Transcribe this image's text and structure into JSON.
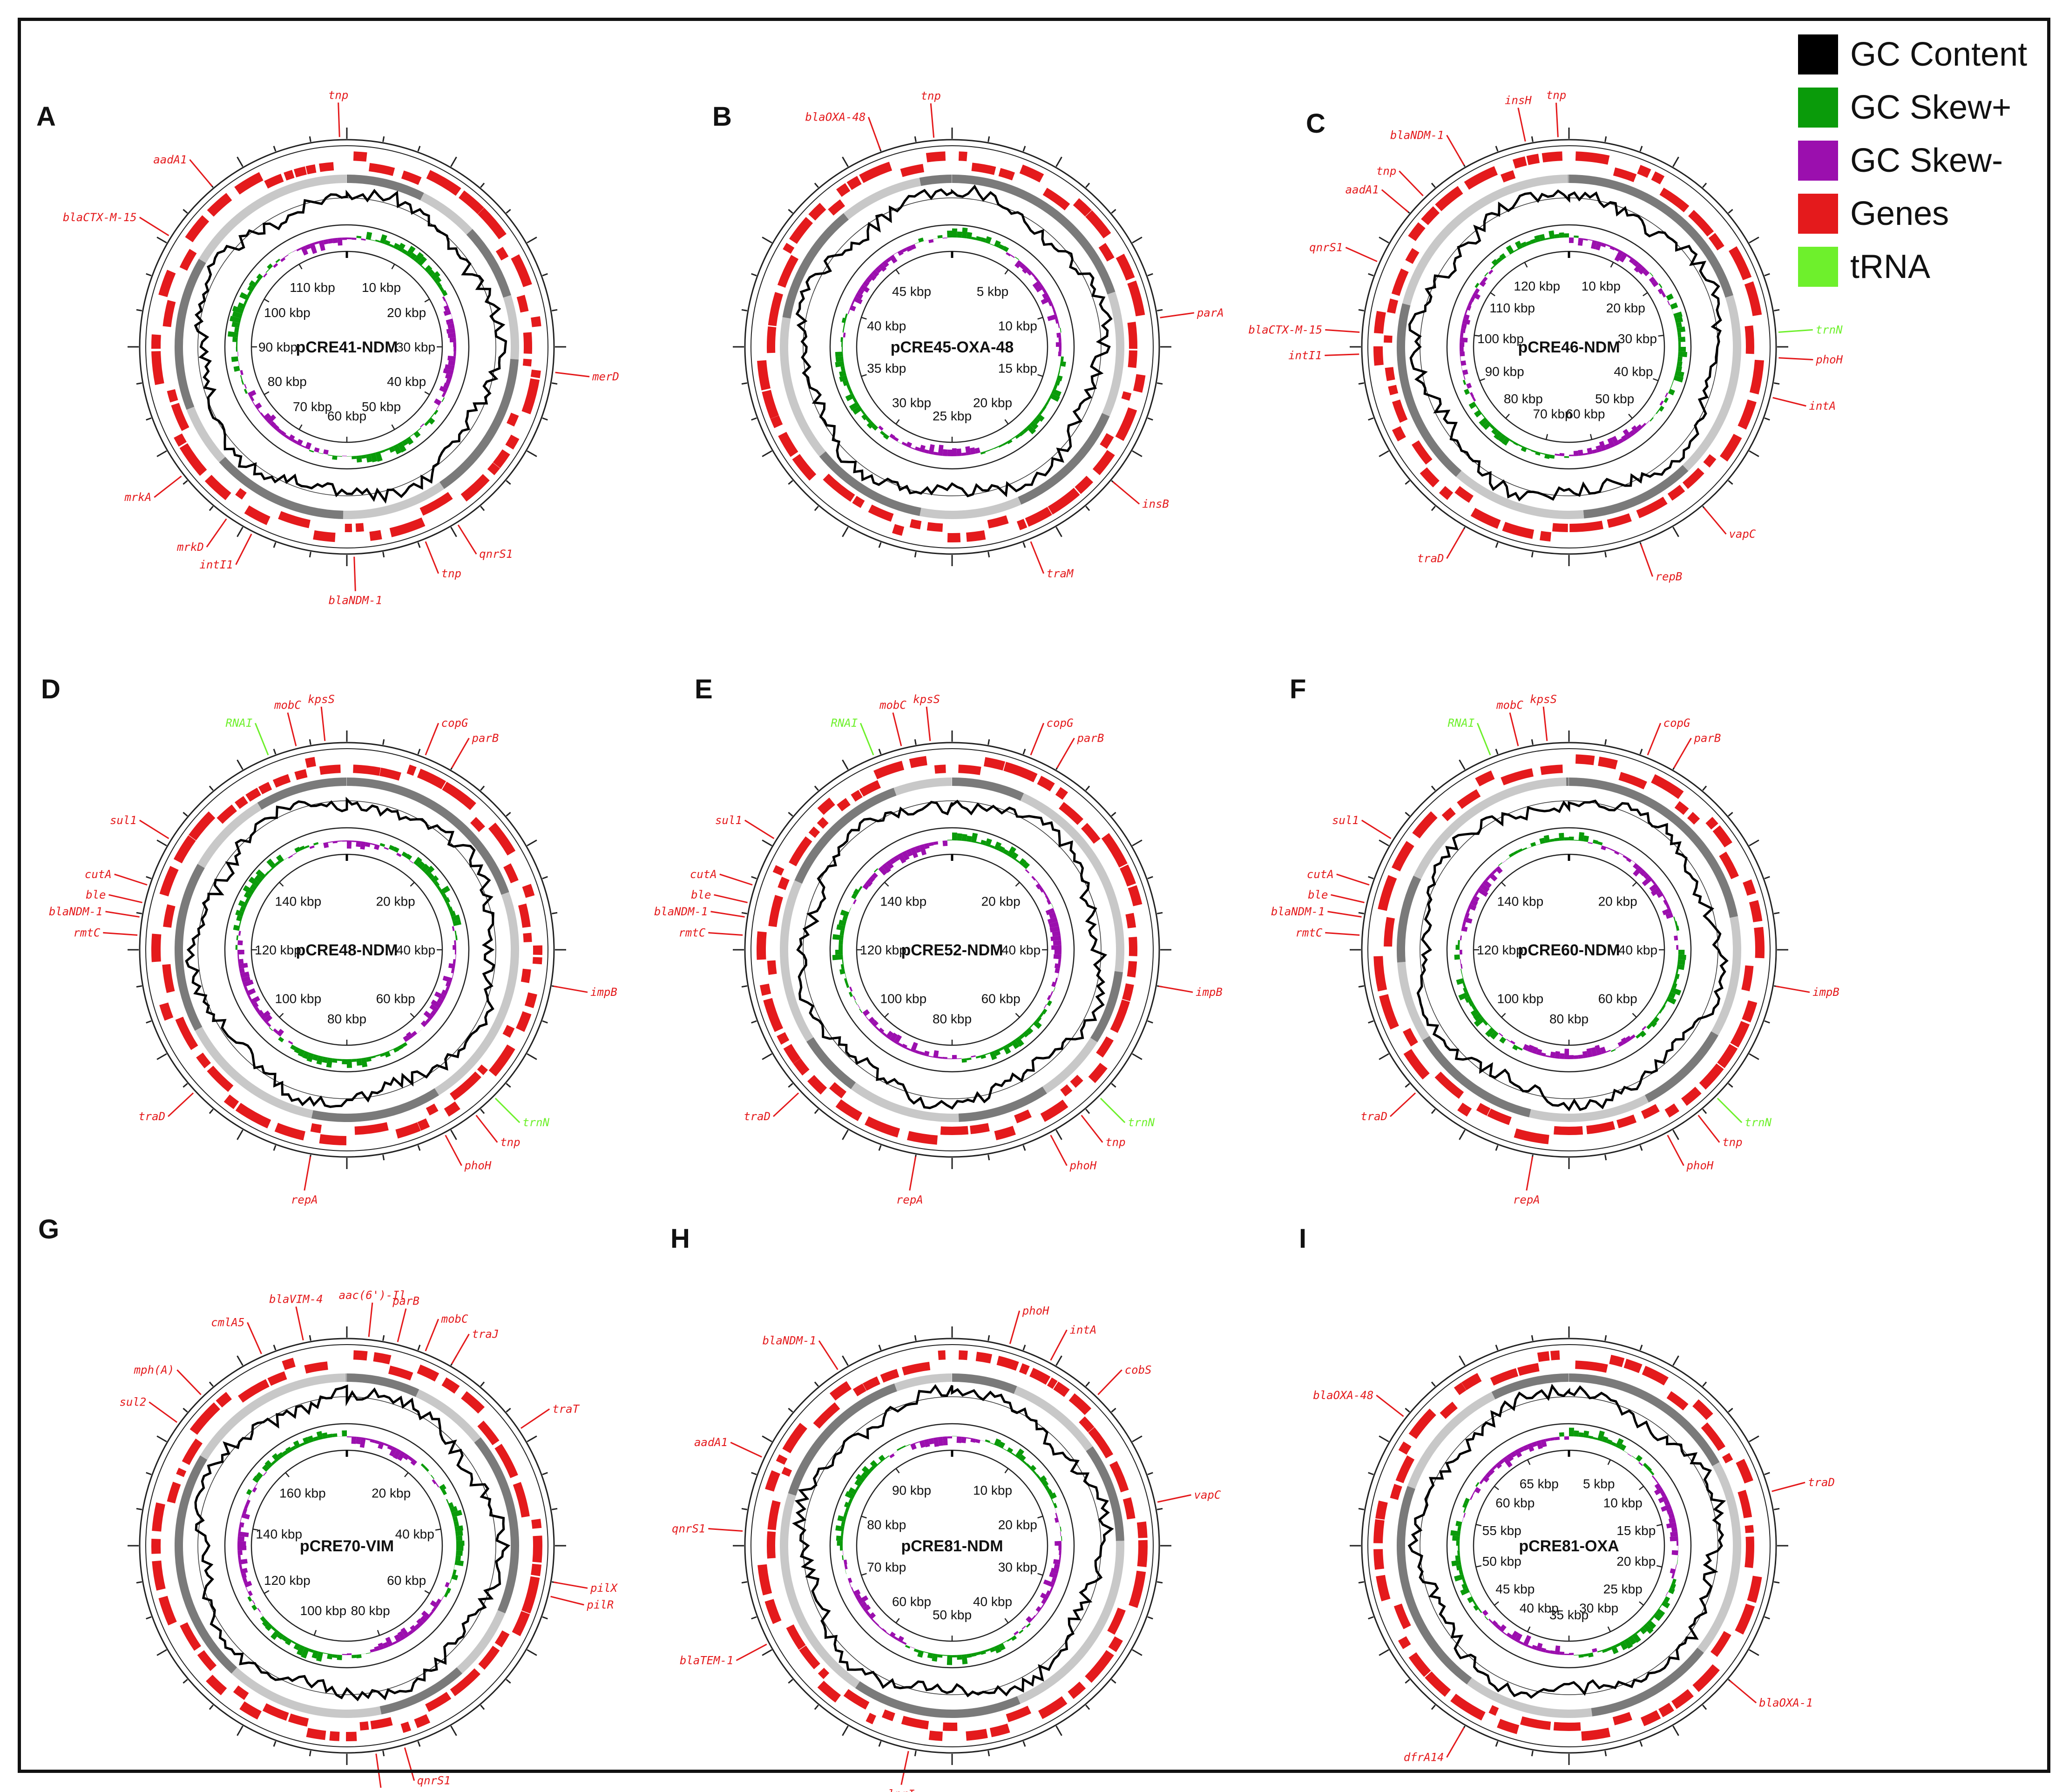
{
  "colors": {
    "gc_content": "#000000",
    "gc_skew_plus": "#0a9b0a",
    "gc_skew_minus": "#9b0fae",
    "genes": "#e41a1c",
    "trna": "#6ef02c",
    "backbone_dark": "#7a7a7a",
    "backbone_light": "#c8c8c8",
    "text": "#111111"
  },
  "legend": [
    {
      "label": "GC Content",
      "color": "#000000"
    },
    {
      "label": "GC Skew+",
      "color": "#0a9b0a"
    },
    {
      "label": "GC Skew-",
      "color": "#9b0fae"
    },
    {
      "label": "Genes",
      "color": "#e41a1c"
    },
    {
      "label": "tRNA",
      "color": "#6ef02c"
    }
  ],
  "panels": [
    {
      "letter": "A",
      "name": "pCRE41-NDM",
      "ticks": [
        "10 kbp",
        "20 kbp",
        "30 kbp",
        "40 kbp",
        "50 kbp",
        "60 kbp",
        "70 kbp",
        "80 kbp",
        "90 kbp",
        "100 kbp",
        "110 kbp"
      ],
      "genes": [
        {
          "name": "tnp",
          "angle": -2,
          "kind": "gene"
        },
        {
          "name": "aadA1",
          "angle": -40,
          "kind": "gene"
        },
        {
          "name": "blaCTX-M-15",
          "angle": -58,
          "kind": "gene"
        },
        {
          "name": "merD",
          "angle": 97,
          "kind": "gene"
        },
        {
          "name": "mrkA",
          "angle": -128,
          "kind": "gene"
        },
        {
          "name": "mrkD",
          "angle": -145,
          "kind": "gene"
        },
        {
          "name": "intI1",
          "angle": -153,
          "kind": "gene"
        },
        {
          "name": "blaNDM-1",
          "angle": 178,
          "kind": "gene"
        },
        {
          "name": "tnp",
          "angle": 158,
          "kind": "gene"
        },
        {
          "name": "qnrS1",
          "angle": 148,
          "kind": "gene"
        }
      ]
    },
    {
      "letter": "B",
      "name": "pCRE45-OXA-48",
      "ticks": [
        "5 kbp",
        "10 kbp",
        "15 kbp",
        "20 kbp",
        "25 kbp",
        "30 kbp",
        "35 kbp",
        "40 kbp",
        "45 kbp"
      ],
      "genes": [
        {
          "name": "blaOXA-48",
          "angle": -20,
          "kind": "gene"
        },
        {
          "name": "tnp",
          "angle": -5,
          "kind": "gene"
        },
        {
          "name": "parA",
          "angle": 82,
          "kind": "gene"
        },
        {
          "name": "insB",
          "angle": 130,
          "kind": "gene"
        },
        {
          "name": "traM",
          "angle": 158,
          "kind": "gene"
        }
      ]
    },
    {
      "letter": "C",
      "name": "pCRE46-NDM",
      "ticks": [
        "10 kbp",
        "20 kbp",
        "30 kbp",
        "40 kbp",
        "50 kbp",
        "60 kbp",
        "70 kbp",
        "80 kbp",
        "90 kbp",
        "100 kbp",
        "110 kbp",
        "120 kbp"
      ],
      "genes": [
        {
          "name": "blaNDM-1",
          "angle": -30,
          "kind": "gene"
        },
        {
          "name": "insH",
          "angle": -12,
          "kind": "gene"
        },
        {
          "name": "tnp",
          "angle": -3,
          "kind": "gene"
        },
        {
          "name": "tnp",
          "angle": -44,
          "kind": "gene"
        },
        {
          "name": "aadA1",
          "angle": -50,
          "kind": "gene"
        },
        {
          "name": "qnrS1",
          "angle": -66,
          "kind": "gene"
        },
        {
          "name": "blaCTX-M-15",
          "angle": -86,
          "kind": "gene"
        },
        {
          "name": "intI1",
          "angle": -92,
          "kind": "gene"
        },
        {
          "name": "trnN",
          "angle": 86,
          "kind": "trna"
        },
        {
          "name": "phoH",
          "angle": 93,
          "kind": "gene"
        },
        {
          "name": "intA",
          "angle": 104,
          "kind": "gene"
        },
        {
          "name": "vapC",
          "angle": 140,
          "kind": "gene"
        },
        {
          "name": "repB",
          "angle": 160,
          "kind": "gene"
        },
        {
          "name": "traD",
          "angle": -150,
          "kind": "gene"
        }
      ]
    },
    {
      "letter": "D",
      "name": "pCRE48-NDM",
      "ticks": [
        "20 kbp",
        "40 kbp",
        "60 kbp",
        "80 kbp",
        "100 kbp",
        "120 kbp",
        "140 kbp"
      ],
      "genes": [
        {
          "name": "RNAI",
          "angle": -22,
          "kind": "trna"
        },
        {
          "name": "mobC",
          "angle": -14,
          "kind": "gene"
        },
        {
          "name": "kpsS",
          "angle": -6,
          "kind": "gene"
        },
        {
          "name": "copG",
          "angle": 22,
          "kind": "gene"
        },
        {
          "name": "parB",
          "angle": 30,
          "kind": "gene"
        },
        {
          "name": "sul1",
          "angle": -58,
          "kind": "gene"
        },
        {
          "name": "cutA",
          "angle": -72,
          "kind": "gene"
        },
        {
          "name": "ble",
          "angle": -77,
          "kind": "gene"
        },
        {
          "name": "blaNDM-1",
          "angle": -81,
          "kind": "gene"
        },
        {
          "name": "rmtC",
          "angle": -86,
          "kind": "gene"
        },
        {
          "name": "impB",
          "angle": 100,
          "kind": "gene"
        },
        {
          "name": "trnN",
          "angle": 135,
          "kind": "trna"
        },
        {
          "name": "tnp",
          "angle": 142,
          "kind": "gene"
        },
        {
          "name": "phoH",
          "angle": 152,
          "kind": "gene"
        },
        {
          "name": "repA",
          "angle": -170,
          "kind": "gene"
        },
        {
          "name": "traD",
          "angle": -133,
          "kind": "gene"
        }
      ]
    },
    {
      "letter": "E",
      "name": "pCRE52-NDM",
      "ticks": [
        "20 kbp",
        "40 kbp",
        "60 kbp",
        "80 kbp",
        "100 kbp",
        "120 kbp",
        "140 kbp"
      ],
      "genes": [
        {
          "name": "RNAI",
          "angle": -22,
          "kind": "trna"
        },
        {
          "name": "mobC",
          "angle": -14,
          "kind": "gene"
        },
        {
          "name": "kpsS",
          "angle": -6,
          "kind": "gene"
        },
        {
          "name": "copG",
          "angle": 22,
          "kind": "gene"
        },
        {
          "name": "parB",
          "angle": 30,
          "kind": "gene"
        },
        {
          "name": "sul1",
          "angle": -58,
          "kind": "gene"
        },
        {
          "name": "cutA",
          "angle": -72,
          "kind": "gene"
        },
        {
          "name": "ble",
          "angle": -77,
          "kind": "gene"
        },
        {
          "name": "blaNDM-1",
          "angle": -81,
          "kind": "gene"
        },
        {
          "name": "rmtC",
          "angle": -86,
          "kind": "gene"
        },
        {
          "name": "impB",
          "angle": 100,
          "kind": "gene"
        },
        {
          "name": "trnN",
          "angle": 135,
          "kind": "trna"
        },
        {
          "name": "tnp",
          "angle": 142,
          "kind": "gene"
        },
        {
          "name": "phoH",
          "angle": 152,
          "kind": "gene"
        },
        {
          "name": "repA",
          "angle": -170,
          "kind": "gene"
        },
        {
          "name": "traD",
          "angle": -133,
          "kind": "gene"
        }
      ]
    },
    {
      "letter": "F",
      "name": "pCRE60-NDM",
      "ticks": [
        "20 kbp",
        "40 kbp",
        "60 kbp",
        "80 kbp",
        "100 kbp",
        "120 kbp",
        "140 kbp"
      ],
      "genes": [
        {
          "name": "RNAI",
          "angle": -22,
          "kind": "trna"
        },
        {
          "name": "mobC",
          "angle": -14,
          "kind": "gene"
        },
        {
          "name": "kpsS",
          "angle": -6,
          "kind": "gene"
        },
        {
          "name": "copG",
          "angle": 22,
          "kind": "gene"
        },
        {
          "name": "parB",
          "angle": 30,
          "kind": "gene"
        },
        {
          "name": "sul1",
          "angle": -58,
          "kind": "gene"
        },
        {
          "name": "cutA",
          "angle": -72,
          "kind": "gene"
        },
        {
          "name": "ble",
          "angle": -77,
          "kind": "gene"
        },
        {
          "name": "blaNDM-1",
          "angle": -81,
          "kind": "gene"
        },
        {
          "name": "rmtC",
          "angle": -86,
          "kind": "gene"
        },
        {
          "name": "impB",
          "angle": 100,
          "kind": "gene"
        },
        {
          "name": "trnN",
          "angle": 135,
          "kind": "trna"
        },
        {
          "name": "tnp",
          "angle": 142,
          "kind": "gene"
        },
        {
          "name": "phoH",
          "angle": 152,
          "kind": "gene"
        },
        {
          "name": "repA",
          "angle": -170,
          "kind": "gene"
        },
        {
          "name": "traD",
          "angle": -133,
          "kind": "gene"
        }
      ]
    },
    {
      "letter": "G",
      "name": "pCRE70-VIM",
      "ticks": [
        "20 kbp",
        "40 kbp",
        "60 kbp",
        "80 kbp",
        "100 kbp",
        "120 kbp",
        "140 kbp",
        "160 kbp"
      ],
      "genes": [
        {
          "name": "mph(A)",
          "angle": -44,
          "kind": "gene"
        },
        {
          "name": "sul2",
          "angle": -54,
          "kind": "gene"
        },
        {
          "name": "cmlA5",
          "angle": -24,
          "kind": "gene"
        },
        {
          "name": "blaVIM-4",
          "angle": -12,
          "kind": "gene"
        },
        {
          "name": "aac(6')-Il",
          "angle": 6,
          "kind": "gene"
        },
        {
          "name": "parB",
          "angle": 14,
          "kind": "gene"
        },
        {
          "name": "mobC",
          "angle": 22,
          "kind": "gene"
        },
        {
          "name": "traJ",
          "angle": 30,
          "kind": "gene"
        },
        {
          "name": "traT",
          "angle": 56,
          "kind": "gene"
        },
        {
          "name": "pilX",
          "angle": 100,
          "kind": "gene"
        },
        {
          "name": "pilR",
          "angle": 104,
          "kind": "gene"
        },
        {
          "name": "tnp",
          "angle": 172,
          "kind": "gene"
        },
        {
          "name": "qnrS1",
          "angle": 164,
          "kind": "gene"
        }
      ]
    },
    {
      "letter": "H",
      "name": "pCRE81-NDM",
      "ticks": [
        "10 kbp",
        "20 kbp",
        "30 kbp",
        "40 kbp",
        "50 kbp",
        "60 kbp",
        "70 kbp",
        "80 kbp",
        "90 kbp"
      ],
      "genes": [
        {
          "name": "blaNDM-1",
          "angle": -33,
          "kind": "gene"
        },
        {
          "name": "phoH",
          "angle": 16,
          "kind": "gene"
        },
        {
          "name": "intA",
          "angle": 28,
          "kind": "gene"
        },
        {
          "name": "cobS",
          "angle": 44,
          "kind": "gene"
        },
        {
          "name": "vapC",
          "angle": 78,
          "kind": "gene"
        },
        {
          "name": "aadA1",
          "angle": -65,
          "kind": "gene"
        },
        {
          "name": "qnrS1",
          "angle": -86,
          "kind": "gene"
        },
        {
          "name": "blaTEM-1",
          "angle": -118,
          "kind": "gene"
        },
        {
          "name": "lprI",
          "angle": -168,
          "kind": "gene"
        }
      ]
    },
    {
      "letter": "I",
      "name": "pCRE81-OXA",
      "ticks": [
        "5 kbp",
        "10 kbp",
        "15 kbp",
        "20 kbp",
        "25 kbp",
        "30 kbp",
        "35 kbp",
        "40 kbp",
        "45 kbp",
        "50 kbp",
        "55 kbp",
        "60 kbp",
        "65 kbp"
      ],
      "genes": [
        {
          "name": "blaOXA-48",
          "angle": -52,
          "kind": "gene"
        },
        {
          "name": "traD",
          "angle": 75,
          "kind": "gene"
        },
        {
          "name": "blaOXA-1",
          "angle": 130,
          "kind": "gene"
        },
        {
          "name": "dfrA14",
          "angle": -150,
          "kind": "gene"
        }
      ]
    }
  ]
}
